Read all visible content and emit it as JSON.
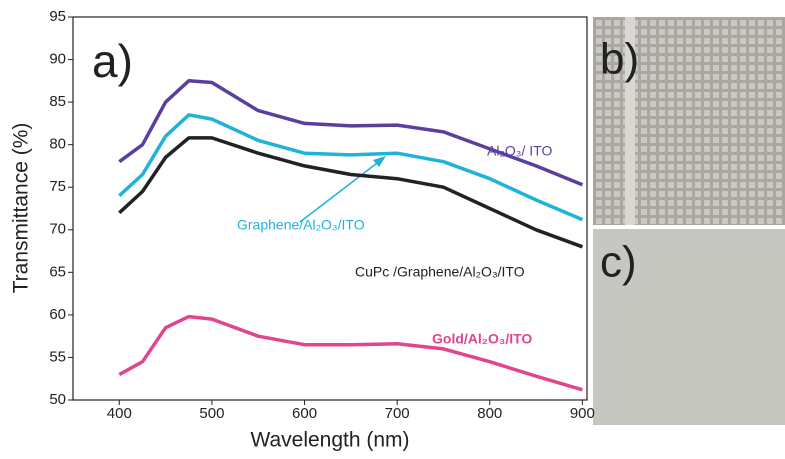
{
  "chart_data": {
    "type": "line",
    "panel_labels": [
      "a)",
      "b)",
      "c)"
    ],
    "x_label": "Wavelength (nm)",
    "y_label": "Transmittance (%)",
    "x": [
      400,
      425,
      450,
      475,
      500,
      550,
      600,
      650,
      700,
      750,
      800,
      850,
      900
    ],
    "series": [
      {
        "name": "Al₂O₃/ ITO",
        "color": "#5a3f9e",
        "values": [
          78,
          80,
          85,
          87.5,
          87.3,
          84,
          82.5,
          82.2,
          82.3,
          81.5,
          79.5,
          77.5,
          75.3
        ]
      },
      {
        "name": "Graphene/Al₂O₃/ITO",
        "color": "#1fb3d9",
        "values": [
          74,
          76.5,
          81,
          83.5,
          83,
          80.5,
          79,
          78.8,
          79,
          78,
          76,
          73.5,
          71.2
        ]
      },
      {
        "name": "CuPc /Graphene/Al₂O₃/ITO",
        "color": "#222222",
        "values": [
          72,
          74.5,
          78.5,
          80.8,
          80.8,
          79,
          77.5,
          76.5,
          76,
          75,
          72.5,
          70,
          68
        ]
      },
      {
        "name": "Gold/Al₂O₃/ITO",
        "color": "#e2458f",
        "values": [
          53,
          54.5,
          58.5,
          59.8,
          59.5,
          57.5,
          56.5,
          56.5,
          56.6,
          56,
          54.5,
          52.8,
          51.2
        ]
      }
    ],
    "xlim": [
      350,
      905
    ],
    "xticks": [
      400,
      500,
      600,
      700,
      800,
      900
    ],
    "ylim": [
      50,
      95
    ],
    "yticks": [
      50,
      55,
      60,
      65,
      70,
      75,
      80,
      85,
      90,
      95
    ]
  }
}
